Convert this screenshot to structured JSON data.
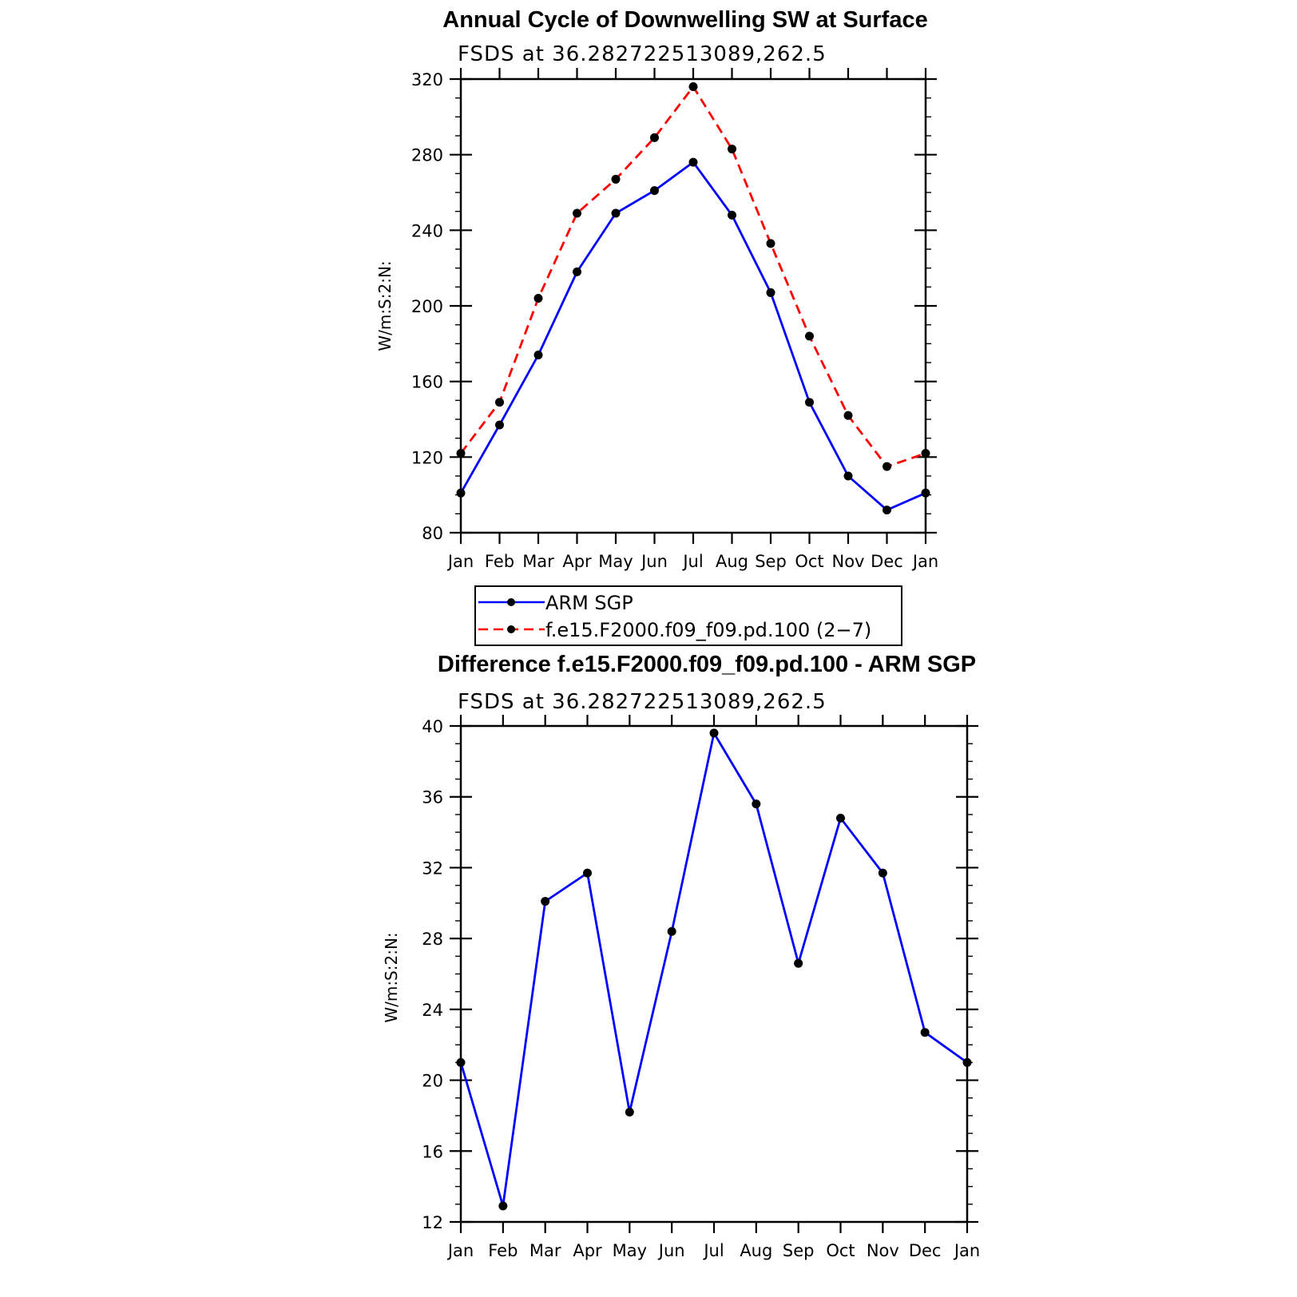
{
  "chart_data": [
    {
      "type": "line",
      "title": "Annual Cycle of Downwelling SW at Surface",
      "subtitle": "FSDS at 36.282722513089,262.5",
      "ylabel": "W/m:S:2:N:",
      "ylim": [
        80,
        320
      ],
      "yticks": [
        80,
        120,
        160,
        200,
        240,
        280,
        320
      ],
      "categories": [
        "Jan",
        "Feb",
        "Mar",
        "Apr",
        "May",
        "Jun",
        "Jul",
        "Aug",
        "Sep",
        "Oct",
        "Nov",
        "Dec",
        "Jan"
      ],
      "legend_position": "bottom",
      "series": [
        {
          "name": "ARM SGP",
          "color": "#0000ff",
          "dash": "solid",
          "values": [
            101,
            137,
            174,
            218,
            249,
            261,
            276,
            248,
            207,
            149,
            110,
            92,
            101
          ]
        },
        {
          "name": "f.e15.F2000.f09_f09.pd.100 (2−7)",
          "color": "#ff0000",
          "dash": "dashed",
          "values": [
            122,
            149,
            204,
            249,
            267,
            289,
            316,
            283,
            233,
            184,
            142,
            115,
            122
          ]
        }
      ]
    },
    {
      "type": "line",
      "title": "Difference f.e15.F2000.f09_f09.pd.100 - ARM SGP",
      "subtitle": "FSDS at 36.282722513089,262.5",
      "ylabel": "W/m:S:2:N:",
      "ylim": [
        12,
        40
      ],
      "yticks": [
        12,
        16,
        20,
        24,
        28,
        32,
        36,
        40
      ],
      "categories": [
        "Jan",
        "Feb",
        "Mar",
        "Apr",
        "May",
        "Jun",
        "Jul",
        "Aug",
        "Sep",
        "Oct",
        "Nov",
        "Dec",
        "Jan"
      ],
      "series": [
        {
          "color": "#0000ff",
          "dash": "solid",
          "values": [
            21.0,
            12.9,
            30.1,
            31.7,
            18.2,
            28.4,
            39.6,
            35.6,
            26.6,
            34.8,
            31.7,
            22.7,
            21.0
          ]
        }
      ]
    }
  ]
}
